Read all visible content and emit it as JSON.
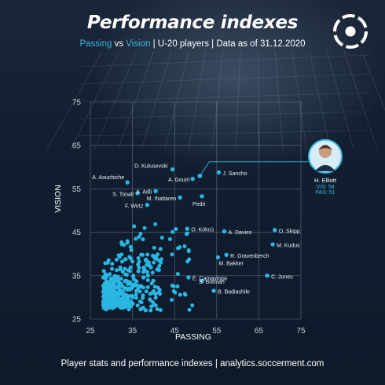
{
  "header": {
    "title": "Performance indexes",
    "subtitle_x": "Passing",
    "subtitle_vs": " vs ",
    "subtitle_y": "Vision",
    "subtitle_rest": " | U-20 players | Data as of 31.12.2020"
  },
  "logo": {
    "icon": "soccerment-logo-icon"
  },
  "footer": {
    "text": "Player stats and performance indexes  |  analytics.soccerment.com"
  },
  "colors": {
    "background": "#0f1b2b",
    "point": "#29b6e3",
    "accent": "#39b7df",
    "grid": "#8a96a6",
    "text": "#ffffff"
  },
  "chart_data": {
    "type": "scatter",
    "xlabel": "PASSING",
    "ylabel": "VISION",
    "xlim": [
      25,
      75
    ],
    "ylim": [
      25,
      75
    ],
    "xticks": [
      25,
      35,
      45,
      55,
      65,
      75
    ],
    "yticks": [
      25,
      35,
      45,
      55,
      65,
      75
    ],
    "grid": true,
    "labeled_points": [
      {
        "name": "D. Kulusevski",
        "x": 44.5,
        "y": 59.5
      },
      {
        "name": "J. Sancho",
        "x": 55.5,
        "y": 58.8
      },
      {
        "name": "A. Gouiri",
        "x": 49.3,
        "y": 57.3
      },
      {
        "name": "A. Aouchiche",
        "x": 33.8,
        "y": 56.5
      },
      {
        "name": "A. Adli",
        "x": 40.5,
        "y": 54.5
      },
      {
        "name": "S. Tonali",
        "x": 36.2,
        "y": 54.0
      },
      {
        "name": "M. Ihattaren",
        "x": 46.3,
        "y": 53.0
      },
      {
        "name": "Pedri",
        "x": 51.5,
        "y": 53.3
      },
      {
        "name": "F. Wirtz",
        "x": 38.5,
        "y": 51.3
      },
      {
        "name": "O. Kökcü",
        "x": 48.0,
        "y": 45.8
      },
      {
        "name": "A. Davies",
        "x": 56.8,
        "y": 45.2
      },
      {
        "name": "O. Skipp",
        "x": 68.8,
        "y": 45.5
      },
      {
        "name": "M. Kudus",
        "x": 68.3,
        "y": 42.2
      },
      {
        "name": "R. Gravenberch",
        "x": 57.3,
        "y": 39.8
      },
      {
        "name": "M. Bakker",
        "x": 55.3,
        "y": 39.2
      },
      {
        "name": "E. Camavinga",
        "x": 48.3,
        "y": 34.6
      },
      {
        "name": "C. Jones",
        "x": 67.0,
        "y": 35.0
      },
      {
        "name": "S. Botman",
        "x": 51.5,
        "y": 33.8
      },
      {
        "name": "B. Badiashile",
        "x": 54.3,
        "y": 31.5
      }
    ],
    "highlight": {
      "name": "H. Elliott",
      "vis_label": "VIS: 58",
      "pas_label": "PAS: 51",
      "x": 51,
      "y": 58
    },
    "points_count": 430
  }
}
